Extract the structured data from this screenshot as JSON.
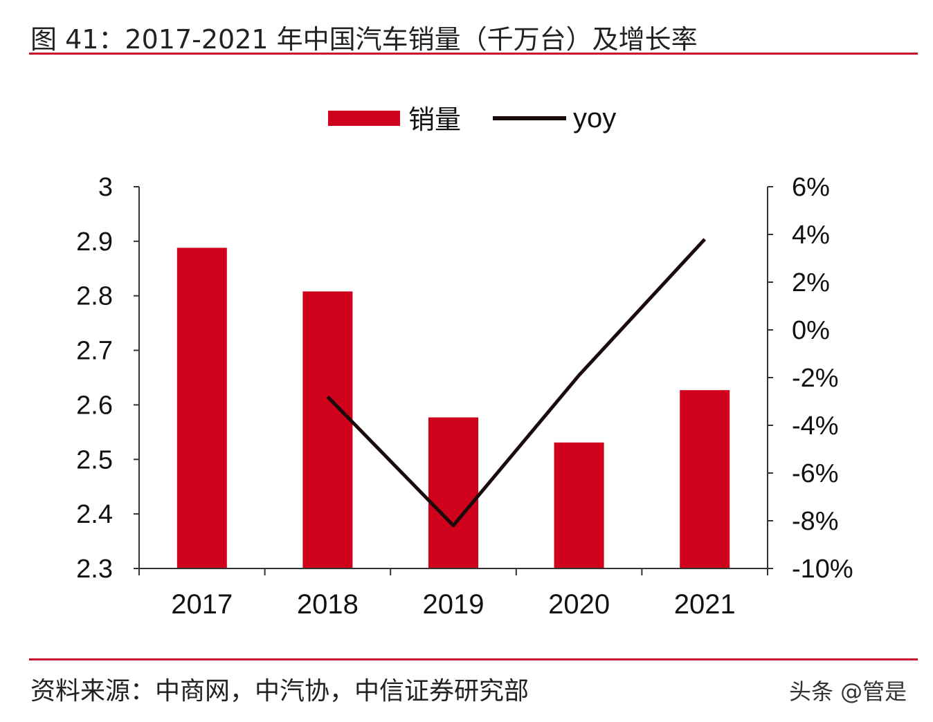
{
  "title": "图 41：2017-2021 年中国汽车销量（千万台）及增长率",
  "source": "资料来源：中商网，中汽协，中信证券研究部",
  "watermark": "头条 @管是",
  "colors": {
    "bar": "#d0021b",
    "line": "#1a0a0a",
    "rule": "#c8102e"
  },
  "chart_data": {
    "type": "bar+line",
    "categories": [
      "2017",
      "2018",
      "2019",
      "2020",
      "2021"
    ],
    "series": [
      {
        "name": "销量",
        "type": "bar",
        "axis": "left",
        "values": [
          2.888,
          2.808,
          2.577,
          2.531,
          2.627
        ]
      },
      {
        "name": "yoy",
        "type": "line",
        "axis": "right",
        "values": [
          null,
          -2.8,
          -8.2,
          -1.9,
          3.8
        ]
      }
    ],
    "left_axis": {
      "min": 2.3,
      "max": 3.0,
      "ticks": [
        "2.3",
        "2.4",
        "2.5",
        "2.6",
        "2.7",
        "2.8",
        "2.9",
        "3"
      ]
    },
    "right_axis": {
      "min": -10,
      "max": 6,
      "ticks": [
        "-10%",
        "-8%",
        "-6%",
        "-4%",
        "-2%",
        "0%",
        "2%",
        "4%",
        "6%"
      ]
    },
    "legend": {
      "position": "top-center",
      "labels": [
        "销量",
        "yoy"
      ]
    },
    "grid": false
  }
}
